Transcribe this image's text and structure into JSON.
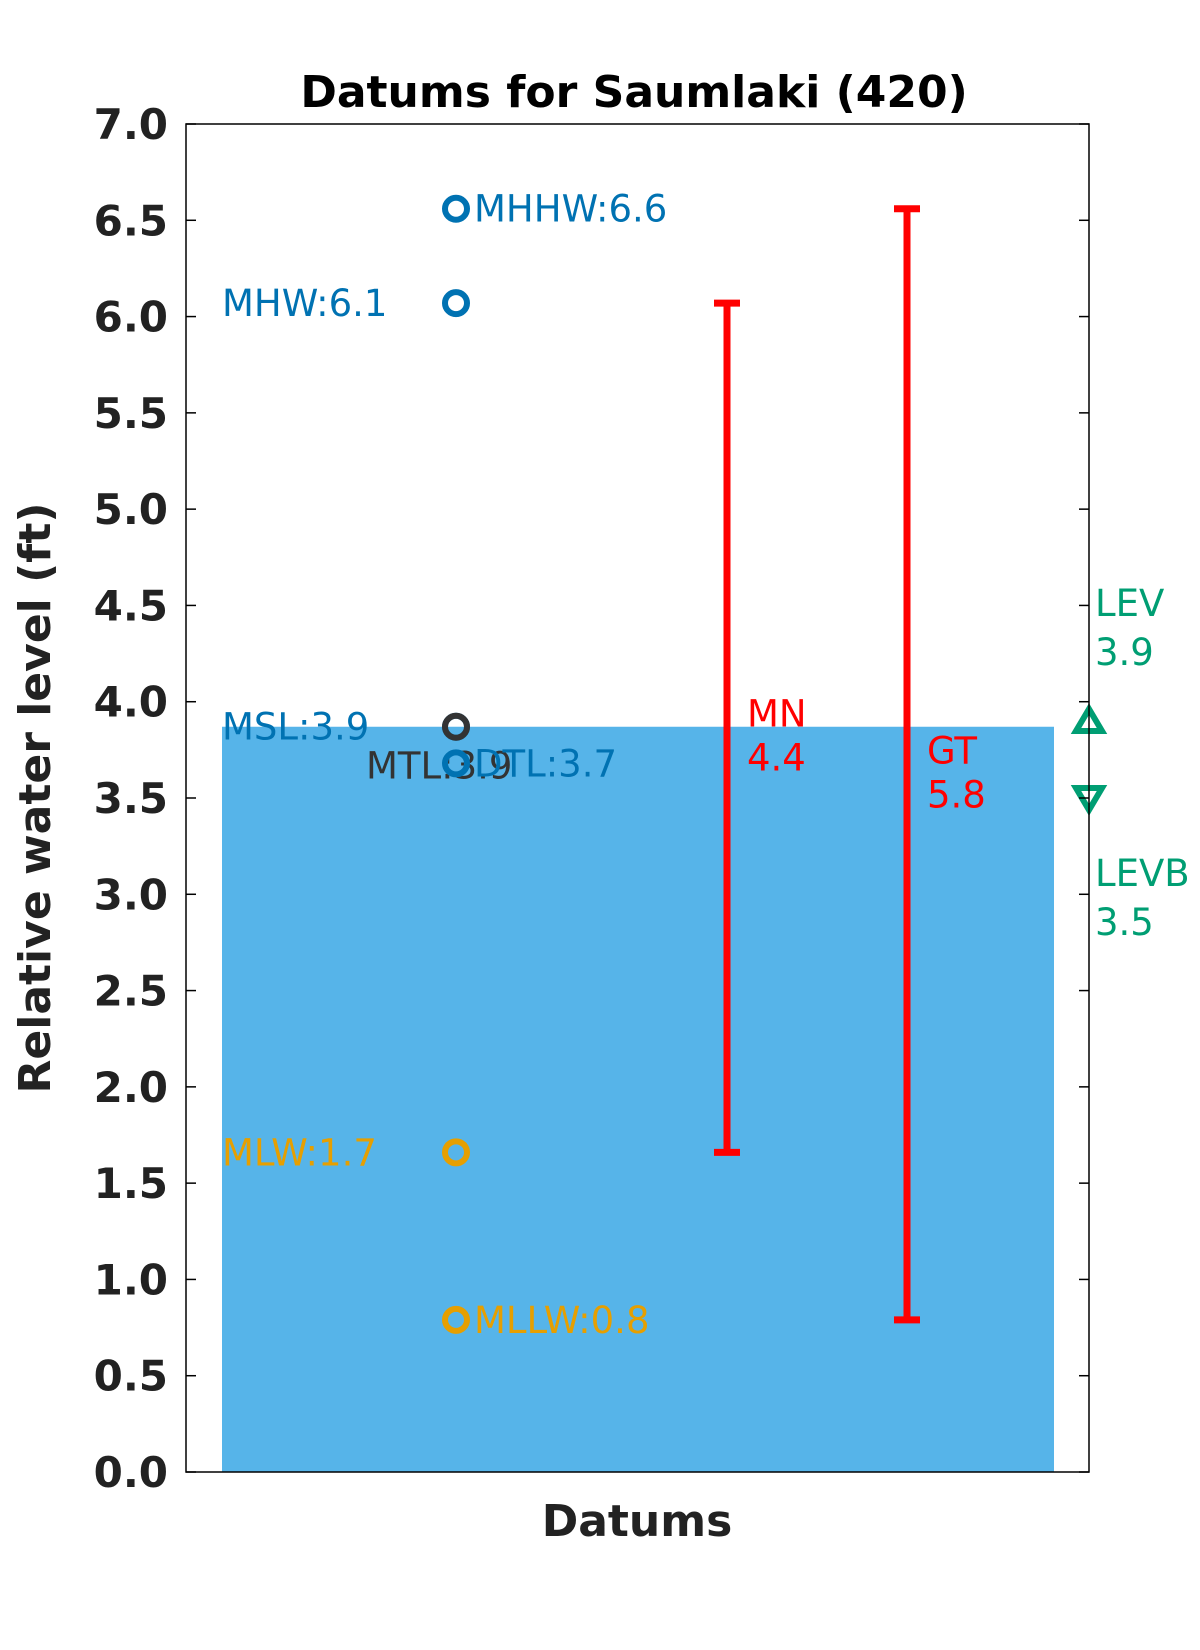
{
  "chart_data": {
    "type": "bar",
    "title": "Datums for Saumlaki (420)",
    "xlabel": "Datums",
    "ylabel": "Relative water level (ft)",
    "ylim": [
      0,
      7
    ],
    "yticks": [
      "0.0",
      "0.5",
      "1.0",
      "1.5",
      "2.0",
      "2.5",
      "3.0",
      "3.5",
      "4.0",
      "4.5",
      "5.0",
      "5.5",
      "6.0",
      "6.5",
      "7.0"
    ],
    "grid": false,
    "bar": {
      "value": 3.87,
      "color": "#56b4e9"
    },
    "datums": [
      {
        "name": "MHHW",
        "value": 6.56,
        "label": "MHHW:6.6",
        "color": "#0072b2",
        "label_side": "right"
      },
      {
        "name": "MHW",
        "value": 6.07,
        "label": "MHW:6.1",
        "color": "#0072b2",
        "label_side": "left"
      },
      {
        "name": "MSL",
        "value": 3.87,
        "label": "MSL:3.9",
        "color": "#0072b2",
        "label_side": "left"
      },
      {
        "name": "MTL",
        "value": 3.87,
        "label": "MTL:3.9",
        "color": "#333333",
        "label_side": "below"
      },
      {
        "name": "DTL",
        "value": 3.68,
        "label": "DTL:3.7",
        "color": "#0072b2",
        "label_side": "right"
      },
      {
        "name": "MLW",
        "value": 1.66,
        "label": "MLW:1.7",
        "color": "#e69f00",
        "label_side": "left"
      },
      {
        "name": "MLLW",
        "value": 0.79,
        "label": "MLLW:0.8",
        "color": "#e69f00",
        "label_side": "right"
      }
    ],
    "ranges": [
      {
        "name": "MN",
        "low": 1.66,
        "high": 6.07,
        "label_name": "MN",
        "label_value": "4.4",
        "color": "#ff0000"
      },
      {
        "name": "GT",
        "low": 0.79,
        "high": 6.56,
        "label_name": "GT",
        "label_value": "5.8",
        "color": "#ff0000"
      }
    ],
    "extremes": [
      {
        "name": "LEV",
        "value": 3.9,
        "label_name": "LEV",
        "label_value": "3.9",
        "marker": "triangle-up",
        "color": "#009e73"
      },
      {
        "name": "LEVB",
        "value": 3.5,
        "label_name": "LEVB",
        "label_value": "3.5",
        "marker": "triangle-down",
        "color": "#009e73"
      }
    ]
  }
}
